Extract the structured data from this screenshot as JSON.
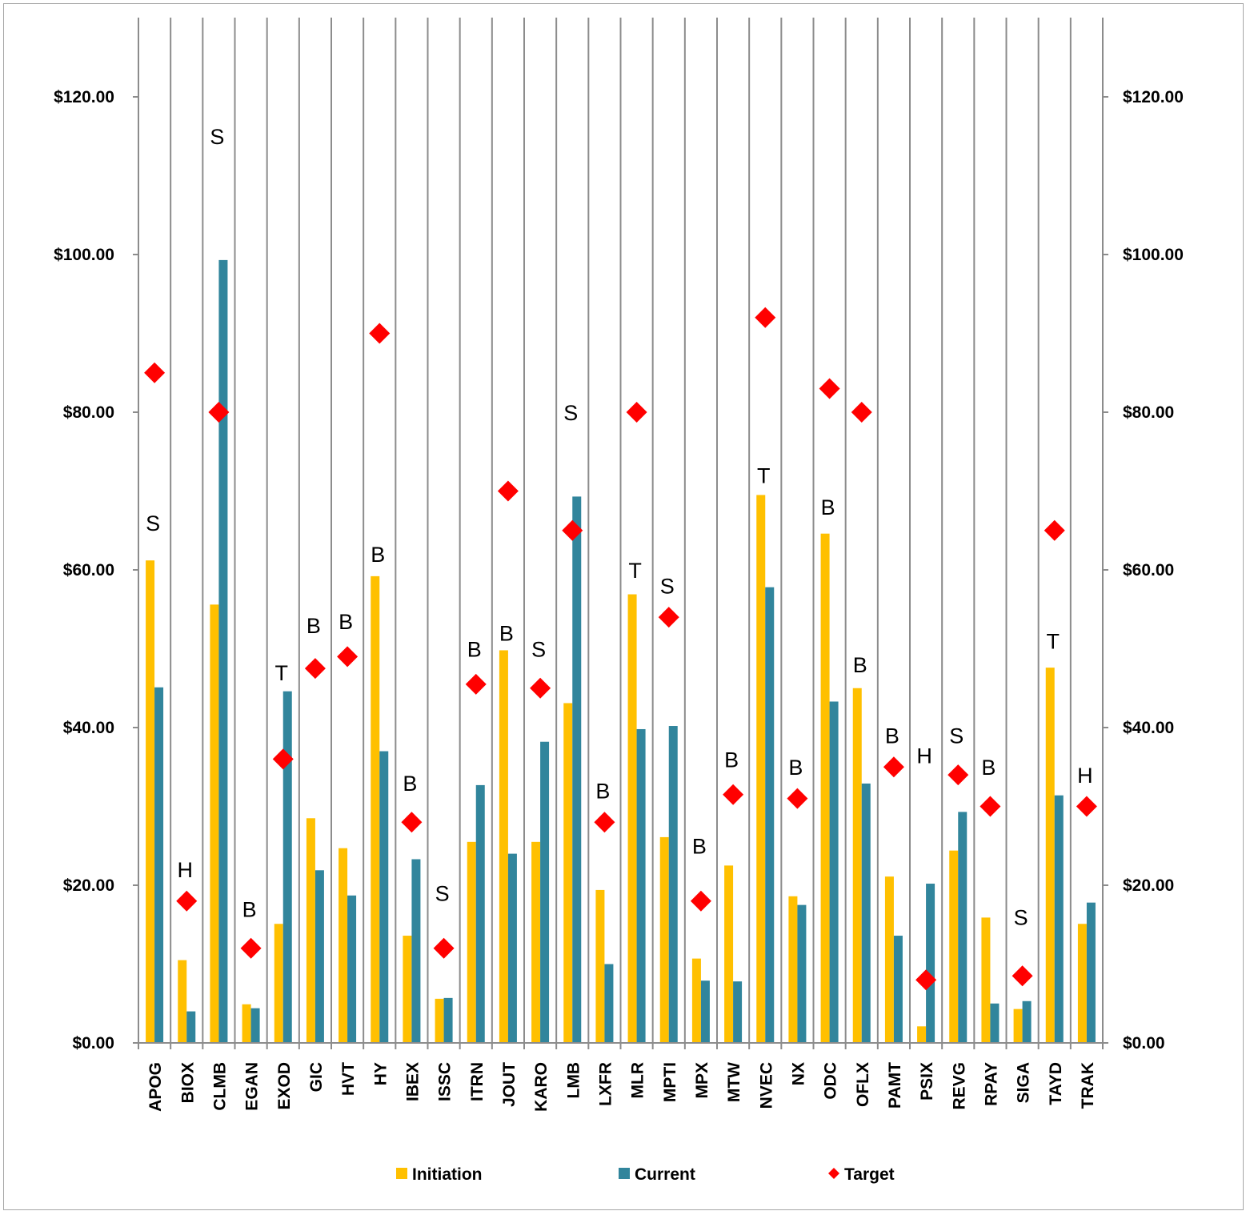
{
  "chart_data": {
    "type": "bar",
    "title": "",
    "xlabel": "",
    "ylabel": "",
    "ylim": [
      0,
      130
    ],
    "y_ticks": [
      "$0.00",
      "$20.00",
      "$40.00",
      "$60.00",
      "$80.00",
      "$100.00",
      "$120.00"
    ],
    "y_tick_values": [
      0,
      20,
      40,
      60,
      80,
      100,
      120
    ],
    "secondary_axis": true,
    "grid": "vertical category separators",
    "legend_position": "bottom",
    "categories": [
      "APOG",
      "BIOX",
      "CLMB",
      "EGAN",
      "EXOD",
      "GIC",
      "HVT",
      "HY",
      "IBEX",
      "ISSC",
      "ITRN",
      "JOUT",
      "KARO",
      "LMB",
      "LXFR",
      "MLR",
      "MPTI",
      "MPX",
      "MTW",
      "NVEC",
      "NX",
      "ODC",
      "OFLX",
      "PAMT",
      "PSIX",
      "REVG",
      "RPAY",
      "SIGA",
      "TAYD",
      "TRAK"
    ],
    "series": [
      {
        "name": "Initiation",
        "kind": "bar",
        "color": "#FFC000",
        "values": [
          61.2,
          10.5,
          55.6,
          4.9,
          15.1,
          28.5,
          24.7,
          59.2,
          13.6,
          5.6,
          25.5,
          49.8,
          25.5,
          43.1,
          19.4,
          56.9,
          26.1,
          10.7,
          22.5,
          69.5,
          18.6,
          64.6,
          45.0,
          21.1,
          2.1,
          24.4,
          15.9,
          4.3,
          47.6,
          15.1
        ]
      },
      {
        "name": "Current",
        "kind": "bar",
        "color": "#31859C",
        "values": [
          45.1,
          4.0,
          99.3,
          4.4,
          44.6,
          21.9,
          18.7,
          37.0,
          23.3,
          5.7,
          32.7,
          24.0,
          38.2,
          69.3,
          10.0,
          39.8,
          40.2,
          7.9,
          7.8,
          57.8,
          17.5,
          43.3,
          32.9,
          13.6,
          20.2,
          29.3,
          5.0,
          5.3,
          31.4,
          17.8
        ]
      },
      {
        "name": "Target",
        "kind": "marker",
        "marker": "diamond",
        "color": "#FF0000",
        "values": [
          85,
          18,
          80,
          12,
          36,
          47.5,
          49,
          90,
          28,
          12,
          45.5,
          70,
          45,
          65,
          28,
          80,
          54,
          18,
          31.5,
          92,
          31,
          83,
          80,
          35,
          8,
          34,
          30,
          8.5,
          65,
          30
        ]
      }
    ],
    "annotations": {
      "ratings": [
        "S",
        "H",
        "S",
        "B",
        "T",
        "B",
        "B",
        "B",
        "B",
        "S",
        "B",
        "B",
        "S",
        "S",
        "B",
        "T",
        "S",
        "B",
        "B",
        "T",
        "B",
        "B",
        "B",
        "B",
        "H",
        "S",
        "B",
        "S",
        "T",
        "H"
      ],
      "rating_values": [
        65,
        21,
        114,
        16,
        46,
        52,
        52.5,
        61,
        32,
        18,
        49,
        51,
        49,
        79,
        31,
        59,
        57,
        24,
        35,
        71,
        34,
        67,
        47,
        38,
        35.5,
        38,
        34,
        15,
        50,
        33
      ]
    }
  },
  "legend": {
    "items": [
      {
        "label": "Initiation",
        "color": "#FFC000",
        "symbol": "square"
      },
      {
        "label": "Current",
        "color": "#31859C",
        "symbol": "square"
      },
      {
        "label": "Target",
        "color": "#FF0000",
        "symbol": "diamond"
      }
    ]
  }
}
